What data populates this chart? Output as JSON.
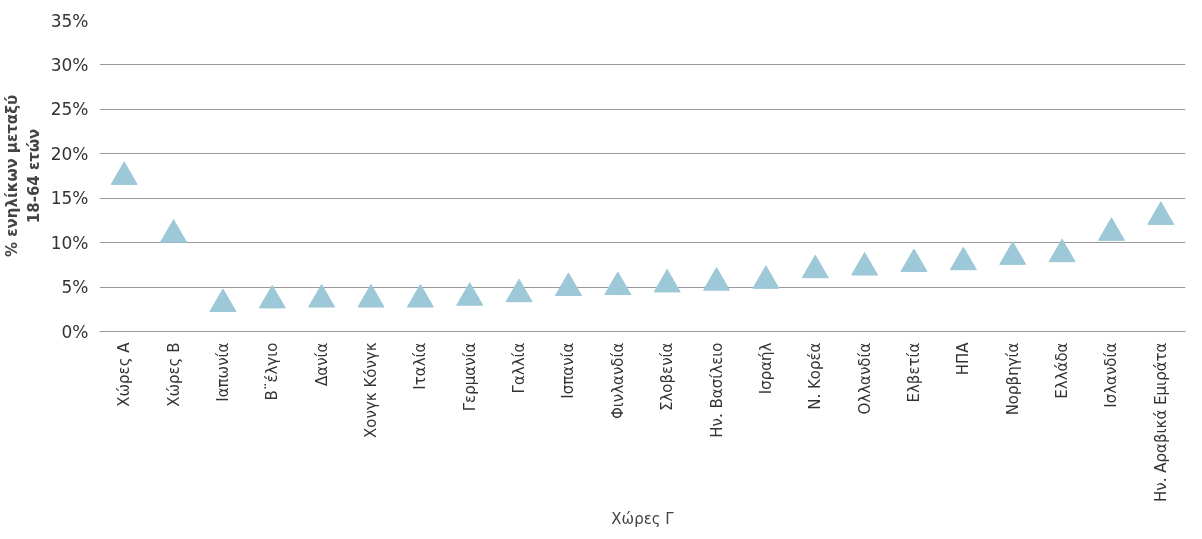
{
  "chart_data": {
    "type": "scatter",
    "xlabel": "Χώρες Γ",
    "ylabel": "% ενηλίκων μεταξύ\n18-64 ετών",
    "categories": [
      "Χώρες Α",
      "Χώρες Β",
      "Ιαπωνία",
      "Β¨έλγιο",
      "Δανία",
      "Χονγκ Κόνγκ",
      "Ιταλία",
      "Γερμανία",
      "Γαλλία",
      "Ισπανία",
      "Φινλανδία",
      "Σλοβενία",
      "Ην. Βασίλειο",
      "Ισραήλ",
      "Ν. Κορέα",
      "Ολλανδία",
      "Ελβετία",
      "ΗΠΑ",
      "Νορβηγία",
      "Ελλάδα",
      "Ισλανδία",
      "Ην. Αραβικά Εμιράτα"
    ],
    "values": [
      17.4,
      10.9,
      3.1,
      3.5,
      3.6,
      3.6,
      3.6,
      3.8,
      4.2,
      4.9,
      5.0,
      5.3,
      5.5,
      5.7,
      6.9,
      7.2,
      7.6,
      7.8,
      8.4,
      8.7,
      11.1,
      12.9
    ],
    "color": "#9dc8d8",
    "marker": "triangle",
    "ylim": [
      0,
      35
    ],
    "yticks": [
      {
        "value": 0,
        "label": "0%"
      },
      {
        "value": 5,
        "label": "5%"
      },
      {
        "value": 10,
        "label": "10%"
      },
      {
        "value": 15,
        "label": "15%"
      },
      {
        "value": 20,
        "label": "20%"
      },
      {
        "value": 25,
        "label": "25%"
      },
      {
        "value": 30,
        "label": "30%"
      },
      {
        "value": 35,
        "label": "35%"
      }
    ],
    "grid": "y"
  }
}
